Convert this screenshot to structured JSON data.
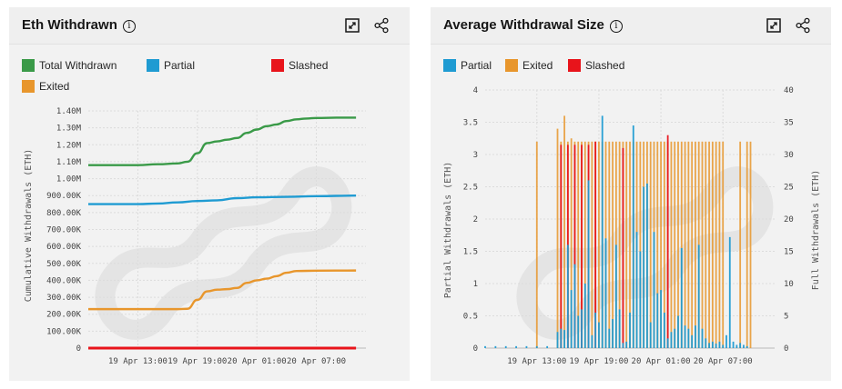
{
  "panels": [
    {
      "title": "Eth Withdrawn",
      "legend": [
        {
          "label": "Total Withdrawn",
          "color": "#3a9a48"
        },
        {
          "label": "Partial",
          "color": "#1f9bd2"
        },
        {
          "label": "Slashed",
          "color": "#e8141b"
        },
        {
          "label": "Exited",
          "color": "#e8962c"
        }
      ]
    },
    {
      "title": "Average Withdrawal Size",
      "legend": [
        {
          "label": "Partial",
          "color": "#1f9bd2"
        },
        {
          "label": "Exited",
          "color": "#e8962c"
        },
        {
          "label": "Slashed",
          "color": "#e8141b"
        }
      ]
    }
  ],
  "icons": [
    "info-icon",
    "expand-icon",
    "share-icon"
  ],
  "chart_data": [
    {
      "type": "line",
      "title": "Eth Withdrawn",
      "ylabel": "Cumulative Withdrawals (ETH)",
      "xlabel": "",
      "ylim": [
        0,
        1400000
      ],
      "yticks": [
        0,
        100000,
        200000,
        300000,
        400000,
        500000,
        600000,
        700000,
        800000,
        900000,
        1000000,
        1100000,
        1200000,
        1300000,
        1400000
      ],
      "ytick_labels": [
        "0",
        "100.00K",
        "200.00K",
        "300.00K",
        "400.00K",
        "500.00K",
        "600.00K",
        "700.00K",
        "800.00K",
        "900.00K",
        "1.00M",
        "1.10M",
        "1.20M",
        "1.30M",
        "1.40M"
      ],
      "xlim": [
        "2023-04-19 08:00",
        "2023-04-20 12:00"
      ],
      "xticks": [
        "2023-04-19 13:00",
        "2023-04-19 19:00",
        "2023-04-20 01:00",
        "2023-04-20 07:00"
      ],
      "xtick_labels": [
        "19 Apr 13:00",
        "19 Apr 19:00",
        "20 Apr 01:00",
        "20 Apr 07:00"
      ],
      "grid": true,
      "legend_position": "top",
      "series": [
        {
          "name": "Total Withdrawn",
          "color": "#3a9a48",
          "points": [
            [
              "2023-04-19 08:00",
              1080000
            ],
            [
              "2023-04-19 13:00",
              1080000
            ],
            [
              "2023-04-19 15:00",
              1085000
            ],
            [
              "2023-04-19 17:00",
              1090000
            ],
            [
              "2023-04-19 18:00",
              1100000
            ],
            [
              "2023-04-19 19:00",
              1150000
            ],
            [
              "2023-04-19 20:00",
              1210000
            ],
            [
              "2023-04-19 21:00",
              1220000
            ],
            [
              "2023-04-19 22:00",
              1230000
            ],
            [
              "2023-04-19 23:00",
              1240000
            ],
            [
              "2023-04-20 00:00",
              1270000
            ],
            [
              "2023-04-20 01:00",
              1290000
            ],
            [
              "2023-04-20 02:00",
              1310000
            ],
            [
              "2023-04-20 03:00",
              1320000
            ],
            [
              "2023-04-20 04:00",
              1340000
            ],
            [
              "2023-04-20 05:00",
              1350000
            ],
            [
              "2023-04-20 06:00",
              1355000
            ],
            [
              "2023-04-20 07:00",
              1358000
            ],
            [
              "2023-04-20 09:00",
              1360000
            ],
            [
              "2023-04-20 11:00",
              1360000
            ]
          ]
        },
        {
          "name": "Partial",
          "color": "#1f9bd2",
          "points": [
            [
              "2023-04-19 08:00",
              850000
            ],
            [
              "2023-04-19 13:00",
              850000
            ],
            [
              "2023-04-19 15:00",
              853000
            ],
            [
              "2023-04-19 17:00",
              860000
            ],
            [
              "2023-04-19 19:00",
              868000
            ],
            [
              "2023-04-19 21:00",
              872000
            ],
            [
              "2023-04-19 23:00",
              885000
            ],
            [
              "2023-04-20 01:00",
              890000
            ],
            [
              "2023-04-20 04:00",
              893000
            ],
            [
              "2023-04-20 07:00",
              897000
            ],
            [
              "2023-04-20 11:00",
              900000
            ]
          ]
        },
        {
          "name": "Slashed",
          "color": "#e8141b",
          "points": [
            [
              "2023-04-19 08:00",
              0
            ],
            [
              "2023-04-20 11:00",
              0
            ]
          ]
        },
        {
          "name": "Exited",
          "color": "#e8962c",
          "points": [
            [
              "2023-04-19 08:00",
              230000
            ],
            [
              "2023-04-19 13:00",
              230000
            ],
            [
              "2023-04-19 17:00",
              230000
            ],
            [
              "2023-04-19 18:00",
              232000
            ],
            [
              "2023-04-19 19:00",
              285000
            ],
            [
              "2023-04-19 20:00",
              335000
            ],
            [
              "2023-04-19 21:00",
              345000
            ],
            [
              "2023-04-19 22:00",
              348000
            ],
            [
              "2023-04-19 23:00",
              355000
            ],
            [
              "2023-04-20 00:00",
              385000
            ],
            [
              "2023-04-20 01:00",
              400000
            ],
            [
              "2023-04-20 02:00",
              410000
            ],
            [
              "2023-04-20 03:00",
              425000
            ],
            [
              "2023-04-20 04:00",
              445000
            ],
            [
              "2023-04-20 05:00",
              455000
            ],
            [
              "2023-04-20 07:00",
              457000
            ],
            [
              "2023-04-20 11:00",
              458000
            ]
          ]
        }
      ]
    },
    {
      "type": "bar",
      "title": "Average Withdrawal Size",
      "ylabel": "Partial Withdrawals (ETH)",
      "ylabel_right": "Full Withdrawals (ETH)",
      "ylim": [
        0,
        4
      ],
      "yticks": [
        0,
        0.5,
        1,
        1.5,
        2,
        2.5,
        3,
        3.5,
        4
      ],
      "ytick_labels": [
        "0",
        "0.5",
        "1",
        "1.5",
        "2",
        "2.5",
        "3",
        "3.5",
        "4"
      ],
      "ylim_right": [
        0,
        40
      ],
      "yticks_right": [
        0,
        5,
        10,
        15,
        20,
        25,
        30,
        35,
        40
      ],
      "ytick_labels_right": [
        "0",
        "5",
        "10",
        "15",
        "20",
        "25",
        "30",
        "35",
        "40"
      ],
      "xlim": [
        "2023-04-19 08:00",
        "2023-04-20 12:00"
      ],
      "xticks": [
        "2023-04-19 13:00",
        "2023-04-19 19:00",
        "2023-04-20 01:00",
        "2023-04-20 07:00"
      ],
      "xtick_labels": [
        "19 Apr 13:00",
        "19 Apr 19:00",
        "20 Apr 01:00",
        "20 Apr 07:00"
      ],
      "grid": true,
      "legend_position": "top",
      "series": [
        {
          "name": "Partial",
          "axis": "left",
          "color": "#1f9bd2",
          "points": [
            [
              "2023-04-19 08:00",
              0.03
            ],
            [
              "2023-04-19 09:00",
              0.03
            ],
            [
              "2023-04-19 10:00",
              0.03
            ],
            [
              "2023-04-19 11:00",
              0.03
            ],
            [
              "2023-04-19 12:00",
              0.03
            ],
            [
              "2023-04-19 13:00",
              0.03
            ],
            [
              "2023-04-19 14:00",
              0.03
            ],
            [
              "2023-04-19 15:00",
              0.25
            ],
            [
              "2023-04-19 15:20",
              0.3
            ],
            [
              "2023-04-19 15:40",
              0.28
            ],
            [
              "2023-04-19 16:00",
              1.6
            ],
            [
              "2023-04-19 16:20",
              0.9
            ],
            [
              "2023-04-19 16:40",
              1.3
            ],
            [
              "2023-04-19 17:00",
              0.5
            ],
            [
              "2023-04-19 17:20",
              0.6
            ],
            [
              "2023-04-19 17:40",
              1.0
            ],
            [
              "2023-04-19 18:00",
              2.6
            ],
            [
              "2023-04-19 18:20",
              0.2
            ],
            [
              "2023-04-19 18:40",
              0.55
            ],
            [
              "2023-04-19 19:00",
              0.4
            ],
            [
              "2023-04-19 19:20",
              3.6
            ],
            [
              "2023-04-19 19:40",
              1.7
            ],
            [
              "2023-04-19 20:00",
              0.3
            ],
            [
              "2023-04-19 20:20",
              0.45
            ],
            [
              "2023-04-19 20:40",
              1.6
            ],
            [
              "2023-04-19 21:00",
              0.6
            ],
            [
              "2023-04-19 21:20",
              0.08
            ],
            [
              "2023-04-19 21:40",
              0.1
            ],
            [
              "2023-04-19 22:00",
              0.55
            ],
            [
              "2023-04-19 22:20",
              3.45
            ],
            [
              "2023-04-19 22:40",
              1.8
            ],
            [
              "2023-04-19 23:00",
              1.5
            ],
            [
              "2023-04-19 23:20",
              2.5
            ],
            [
              "2023-04-19 23:40",
              2.55
            ],
            [
              "2023-04-20 00:00",
              0.4
            ],
            [
              "2023-04-20 00:20",
              1.8
            ],
            [
              "2023-04-20 00:40",
              0.85
            ],
            [
              "2023-04-20 01:00",
              0.9
            ],
            [
              "2023-04-20 01:20",
              0.55
            ],
            [
              "2023-04-20 01:40",
              0.15
            ],
            [
              "2023-04-20 02:00",
              0.25
            ],
            [
              "2023-04-20 02:20",
              0.3
            ],
            [
              "2023-04-20 02:40",
              0.5
            ],
            [
              "2023-04-20 03:00",
              1.55
            ],
            [
              "2023-04-20 03:20",
              0.35
            ],
            [
              "2023-04-20 03:40",
              0.3
            ],
            [
              "2023-04-20 04:00",
              0.2
            ],
            [
              "2023-04-20 04:20",
              0.35
            ],
            [
              "2023-04-20 04:40",
              1.6
            ],
            [
              "2023-04-20 05:00",
              0.3
            ],
            [
              "2023-04-20 05:20",
              0.15
            ],
            [
              "2023-04-20 05:40",
              0.08
            ],
            [
              "2023-04-20 06:00",
              0.1
            ],
            [
              "2023-04-20 06:20",
              0.07
            ],
            [
              "2023-04-20 06:40",
              0.1
            ],
            [
              "2023-04-20 07:00",
              0.05
            ],
            [
              "2023-04-20 07:20",
              0.2
            ],
            [
              "2023-04-20 07:40",
              1.72
            ],
            [
              "2023-04-20 08:00",
              0.1
            ],
            [
              "2023-04-20 08:20",
              0.05
            ],
            [
              "2023-04-20 08:40",
              0.08
            ],
            [
              "2023-04-20 09:00",
              0.05
            ],
            [
              "2023-04-20 09:20",
              0.03
            ]
          ]
        },
        {
          "name": "Exited",
          "axis": "right",
          "color": "#e8962c",
          "points": [
            [
              "2023-04-19 13:00",
              32
            ],
            [
              "2023-04-19 15:00",
              34
            ],
            [
              "2023-04-19 15:20",
              32
            ],
            [
              "2023-04-19 15:40",
              36
            ],
            [
              "2023-04-19 16:00",
              32
            ],
            [
              "2023-04-19 16:20",
              32.5
            ],
            [
              "2023-04-19 16:40",
              32
            ],
            [
              "2023-04-19 17:00",
              32
            ],
            [
              "2023-04-19 17:20",
              32
            ],
            [
              "2023-04-19 17:40",
              32
            ],
            [
              "2023-04-19 18:00",
              32
            ],
            [
              "2023-04-19 18:20",
              32
            ],
            [
              "2023-04-19 18:40",
              32
            ],
            [
              "2023-04-19 19:00",
              32
            ],
            [
              "2023-04-19 19:20",
              32
            ],
            [
              "2023-04-19 19:40",
              32
            ],
            [
              "2023-04-19 20:00",
              32
            ],
            [
              "2023-04-19 20:20",
              32
            ],
            [
              "2023-04-19 20:40",
              32
            ],
            [
              "2023-04-19 21:00",
              32
            ],
            [
              "2023-04-19 21:20",
              32
            ],
            [
              "2023-04-19 21:40",
              32
            ],
            [
              "2023-04-19 22:00",
              32
            ],
            [
              "2023-04-19 22:20",
              32
            ],
            [
              "2023-04-19 22:40",
              32
            ],
            [
              "2023-04-19 23:00",
              32
            ],
            [
              "2023-04-19 23:20",
              32
            ],
            [
              "2023-04-19 23:40",
              32
            ],
            [
              "2023-04-20 00:00",
              32
            ],
            [
              "2023-04-20 00:20",
              32
            ],
            [
              "2023-04-20 00:40",
              32
            ],
            [
              "2023-04-20 01:00",
              32
            ],
            [
              "2023-04-20 01:20",
              32
            ],
            [
              "2023-04-20 01:40",
              32
            ],
            [
              "2023-04-20 02:00",
              32
            ],
            [
              "2023-04-20 02:20",
              32
            ],
            [
              "2023-04-20 02:40",
              32
            ],
            [
              "2023-04-20 03:00",
              32
            ],
            [
              "2023-04-20 03:20",
              32
            ],
            [
              "2023-04-20 03:40",
              32
            ],
            [
              "2023-04-20 04:00",
              32
            ],
            [
              "2023-04-20 04:20",
              32
            ],
            [
              "2023-04-20 04:40",
              32
            ],
            [
              "2023-04-20 05:00",
              32
            ],
            [
              "2023-04-20 05:20",
              32
            ],
            [
              "2023-04-20 05:40",
              32
            ],
            [
              "2023-04-20 06:00",
              32
            ],
            [
              "2023-04-20 06:20",
              32
            ],
            [
              "2023-04-20 06:40",
              32
            ],
            [
              "2023-04-20 07:00",
              32
            ],
            [
              "2023-04-20 08:40",
              32
            ],
            [
              "2023-04-20 09:20",
              32
            ],
            [
              "2023-04-20 09:40",
              32
            ]
          ]
        },
        {
          "name": "Slashed",
          "axis": "right",
          "color": "#e8141b",
          "points": [
            [
              "2023-04-19 15:20",
              31.5
            ],
            [
              "2023-04-19 16:00",
              31.5
            ],
            [
              "2023-04-19 16:40",
              31.5
            ],
            [
              "2023-04-19 17:20",
              31.5
            ],
            [
              "2023-04-19 18:00",
              31.5
            ],
            [
              "2023-04-19 18:40",
              32
            ],
            [
              "2023-04-19 21:20",
              31
            ],
            [
              "2023-04-20 01:40",
              33
            ]
          ]
        }
      ]
    }
  ]
}
